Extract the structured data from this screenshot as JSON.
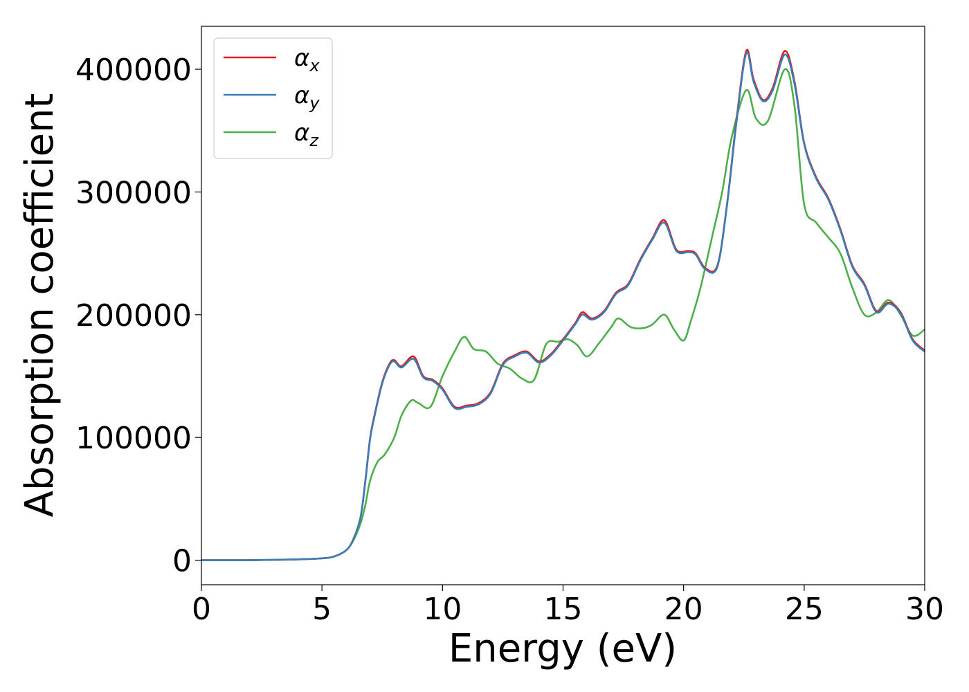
{
  "chart_data": {
    "type": "line",
    "title": "",
    "xlabel": "Energy (eV)",
    "ylabel": "Absorption coefficient",
    "xlim": [
      0,
      30
    ],
    "ylim": [
      -20000,
      435000
    ],
    "xticks": [
      0,
      5,
      10,
      15,
      20,
      25,
      30
    ],
    "xtick_labels": [
      "0",
      "5",
      "10",
      "15",
      "20",
      "25",
      "30"
    ],
    "yticks": [
      0,
      100000,
      200000,
      300000,
      400000
    ],
    "ytick_labels": [
      "0",
      "100000",
      "200000",
      "300000",
      "400000"
    ],
    "grid": false,
    "legend_position": "top-left",
    "series": [
      {
        "name": "α_x",
        "label_main": "α",
        "label_sub": "x",
        "color": "#e41a1c",
        "x": [
          0,
          1,
          2,
          3,
          4,
          5,
          5.5,
          6,
          6.3,
          6.6,
          6.8,
          7.0,
          7.2,
          7.5,
          7.8,
          8.0,
          8.3,
          8.8,
          9.2,
          9.6,
          10.0,
          10.5,
          11.0,
          11.5,
          12.0,
          12.5,
          13.0,
          13.5,
          14.0,
          14.5,
          15.0,
          15.5,
          15.8,
          16.2,
          16.7,
          17.2,
          17.7,
          18.2,
          18.7,
          19.2,
          19.7,
          20.2,
          20.5,
          20.9,
          21.4,
          21.8,
          22.2,
          22.6,
          22.9,
          23.3,
          23.7,
          24.2,
          24.6,
          25.0,
          25.5,
          26.0,
          26.5,
          27.0,
          27.5,
          28.0,
          28.5,
          29.0,
          29.5,
          30.0
        ],
        "values": [
          0,
          0,
          0,
          300,
          700,
          1500,
          3000,
          8000,
          17000,
          35000,
          65000,
          100000,
          120000,
          145000,
          160000,
          163000,
          158000,
          166000,
          150000,
          147000,
          140000,
          125000,
          126000,
          128000,
          137000,
          160000,
          167000,
          170000,
          162000,
          168000,
          180000,
          193000,
          202000,
          197000,
          203000,
          218000,
          225000,
          245000,
          262000,
          277000,
          253000,
          252000,
          250000,
          238000,
          240000,
          290000,
          360000,
          415000,
          392000,
          375000,
          385000,
          415000,
          390000,
          340000,
          312000,
          295000,
          270000,
          240000,
          225000,
          203000,
          210000,
          202000,
          180000,
          171000
        ]
      },
      {
        "name": "α_y",
        "label_main": "α",
        "label_sub": "y",
        "color": "#377eb8",
        "x": [
          0,
          1,
          2,
          3,
          4,
          5,
          5.5,
          6,
          6.3,
          6.6,
          6.8,
          7.0,
          7.2,
          7.5,
          7.8,
          8.0,
          8.3,
          8.8,
          9.2,
          9.6,
          10.0,
          10.5,
          11.0,
          11.5,
          12.0,
          12.5,
          13.0,
          13.5,
          14.0,
          14.5,
          15.0,
          15.5,
          15.8,
          16.2,
          16.7,
          17.2,
          17.7,
          18.2,
          18.7,
          19.2,
          19.7,
          20.2,
          20.5,
          20.9,
          21.4,
          21.8,
          22.2,
          22.6,
          22.9,
          23.3,
          23.7,
          24.2,
          24.6,
          25.0,
          25.5,
          26.0,
          26.5,
          27.0,
          27.5,
          28.0,
          28.5,
          29.0,
          29.5,
          30.0
        ],
        "values": [
          0,
          0,
          0,
          300,
          700,
          1500,
          3000,
          8000,
          17000,
          35000,
          64000,
          99000,
          119000,
          144000,
          159000,
          162000,
          157000,
          164000,
          149000,
          146000,
          139000,
          124000,
          125000,
          127000,
          136000,
          159000,
          166000,
          169000,
          161000,
          167000,
          179000,
          192000,
          200000,
          196000,
          202000,
          217000,
          224000,
          244000,
          261000,
          275000,
          252000,
          251000,
          249000,
          237000,
          239000,
          289000,
          358000,
          413000,
          390000,
          374000,
          383000,
          412000,
          388000,
          339000,
          311000,
          294000,
          269000,
          239000,
          224000,
          202000,
          209000,
          201000,
          179000,
          170000
        ]
      },
      {
        "name": "α_z",
        "label_main": "α",
        "label_sub": "z",
        "color": "#4daf4a",
        "x": [
          0,
          1,
          2,
          3,
          4,
          5,
          5.5,
          6,
          6.3,
          6.6,
          6.8,
          7.0,
          7.3,
          7.6,
          8.0,
          8.3,
          8.7,
          9.0,
          9.5,
          10.0,
          10.5,
          10.9,
          11.3,
          11.8,
          12.3,
          12.8,
          13.3,
          13.8,
          14.3,
          14.8,
          15.2,
          15.6,
          16.0,
          16.5,
          17.0,
          17.3,
          17.8,
          18.3,
          18.7,
          19.2,
          19.6,
          20.0,
          20.3,
          20.7,
          21.2,
          21.6,
          22.0,
          22.6,
          23.0,
          23.5,
          24.2,
          24.6,
          25.0,
          25.5,
          26.0,
          26.5,
          27.0,
          27.5,
          28.0,
          28.5,
          29.0,
          29.5,
          30.0
        ],
        "values": [
          0,
          0,
          0,
          300,
          700,
          1500,
          3000,
          8000,
          16000,
          30000,
          45000,
          65000,
          80000,
          86000,
          100000,
          118000,
          130000,
          128000,
          125000,
          150000,
          170000,
          182000,
          172000,
          170000,
          160000,
          156000,
          148000,
          147000,
          176000,
          178000,
          180000,
          175000,
          166000,
          177000,
          190000,
          197000,
          190000,
          189000,
          192000,
          200000,
          188000,
          179000,
          195000,
          222000,
          265000,
          300000,
          345000,
          383000,
          360000,
          358000,
          400000,
          370000,
          290000,
          275000,
          263000,
          250000,
          222000,
          200000,
          202000,
          212000,
          200000,
          183000,
          188000
        ]
      }
    ]
  }
}
